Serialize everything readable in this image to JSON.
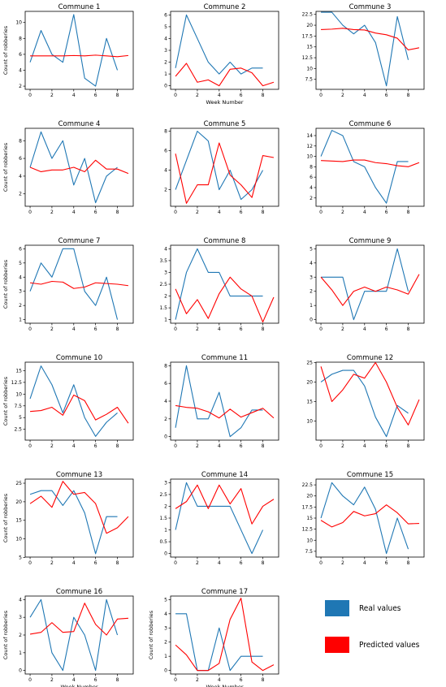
{
  "chart_data": [
    {
      "type": "line",
      "title": "Commune 1",
      "xlabel": "",
      "ylabel": "Count of robberies",
      "ylim": [
        1.6,
        11.4
      ],
      "yticks": [
        2,
        4,
        6,
        8,
        10
      ],
      "xticks": [
        0,
        2,
        4,
        6,
        8
      ],
      "series": [
        {
          "values": [
            5,
            9,
            6,
            5,
            11,
            3,
            2,
            8,
            4
          ]
        },
        {
          "values": [
            5.8,
            5.8,
            5.8,
            5.8,
            5.85,
            5.8,
            5.9,
            5.8,
            5.7,
            5.85
          ]
        }
      ]
    },
    {
      "type": "line",
      "title": "Commune 2",
      "xlabel": "Week Number",
      "ylabel": "",
      "ylim": [
        -0.3,
        6.3
      ],
      "yticks": [
        0,
        1,
        2,
        3,
        4,
        5,
        6
      ],
      "xticks": [
        0,
        2,
        4,
        6,
        8
      ],
      "series": [
        {
          "values": [
            1.5,
            6,
            4,
            2,
            1,
            2,
            1,
            1.5,
            1.5
          ]
        },
        {
          "values": [
            0.8,
            1.9,
            0.3,
            0.5,
            0,
            1.4,
            1.5,
            1.1,
            0,
            0.3
          ]
        }
      ]
    },
    {
      "type": "line",
      "title": "Commune 3",
      "xlabel": "",
      "ylabel": "",
      "ylim": [
        5.2,
        23.2
      ],
      "yticks": [
        7.5,
        10.0,
        12.5,
        15.0,
        17.5,
        20.0,
        22.5
      ],
      "xticks": [
        0,
        2,
        4,
        6,
        8
      ],
      "series": [
        {
          "values": [
            23,
            23,
            20,
            18,
            20,
            16,
            6,
            22,
            12
          ]
        },
        {
          "values": [
            19,
            19.1,
            19.3,
            19,
            18.9,
            18.2,
            17.8,
            17,
            14.3,
            14.8
          ]
        }
      ]
    },
    {
      "type": "line",
      "title": "Commune 4",
      "xlabel": "",
      "ylabel": "Count of robberies",
      "ylim": [
        0.6,
        9.4
      ],
      "yticks": [
        2,
        4,
        6,
        8
      ],
      "xticks": [
        0,
        2,
        4,
        6,
        8
      ],
      "series": [
        {
          "values": [
            5,
            9,
            6,
            8,
            3,
            6,
            1,
            4,
            5
          ]
        },
        {
          "values": [
            5,
            4.5,
            4.7,
            4.7,
            5,
            4.5,
            5.8,
            4.8,
            4.8,
            4.3
          ]
        }
      ]
    },
    {
      "type": "line",
      "title": "Commune 5",
      "xlabel": "",
      "ylabel": "",
      "ylim": [
        0.3,
        8.3
      ],
      "yticks": [
        2,
        4,
        6,
        8
      ],
      "xticks": [
        0,
        2,
        4,
        6,
        8
      ],
      "series": [
        {
          "values": [
            2,
            5,
            8,
            7,
            2,
            4,
            1,
            2,
            4
          ]
        },
        {
          "values": [
            5.7,
            0.6,
            2.5,
            2.5,
            6.8,
            3.5,
            2.5,
            1.2,
            5.5,
            5.3
          ]
        }
      ]
    },
    {
      "type": "line",
      "title": "Commune 6",
      "xlabel": "",
      "ylabel": "",
      "ylim": [
        0.4,
        15.4
      ],
      "yticks": [
        2,
        4,
        6,
        8,
        10,
        12,
        14
      ],
      "xticks": [
        0,
        2,
        4,
        6,
        8
      ],
      "series": [
        {
          "values": [
            10,
            15,
            14,
            9,
            8,
            4,
            1,
            9,
            9
          ]
        },
        {
          "values": [
            9.2,
            9.1,
            9,
            9.3,
            9.3,
            8.8,
            8.6,
            8.2,
            8,
            8.8
          ]
        }
      ]
    },
    {
      "type": "line",
      "title": "Commune 7",
      "xlabel": "",
      "ylabel": "Count of robberies",
      "ylim": [
        0.75,
        6.25
      ],
      "yticks": [
        1,
        2,
        3,
        4,
        5,
        6
      ],
      "xticks": [
        0,
        2,
        4,
        6,
        8
      ],
      "series": [
        {
          "values": [
            3,
            5,
            4,
            6,
            6,
            3,
            2,
            4,
            1
          ]
        },
        {
          "values": [
            3.6,
            3.5,
            3.7,
            3.65,
            3.2,
            3.3,
            3.6,
            3.55,
            3.5,
            3.4
          ]
        }
      ]
    },
    {
      "type": "line",
      "title": "Commune 8",
      "xlabel": "",
      "ylabel": "",
      "ylim": [
        0.85,
        4.15
      ],
      "yticks": [
        1.0,
        1.5,
        2.0,
        2.5,
        3.0,
        3.5,
        4.0
      ],
      "xticks": [
        0,
        2,
        4,
        6,
        8
      ],
      "series": [
        {
          "values": [
            1,
            3,
            4,
            3,
            3,
            2,
            2,
            2,
            2
          ]
        },
        {
          "values": [
            2.3,
            1.25,
            1.85,
            1.05,
            2.1,
            2.8,
            2.3,
            2,
            0.9,
            1.95
          ]
        }
      ]
    },
    {
      "type": "line",
      "title": "Commune 9",
      "xlabel": "",
      "ylabel": "",
      "ylim": [
        -0.25,
        5.25
      ],
      "yticks": [
        0,
        1,
        2,
        3,
        4,
        5
      ],
      "xticks": [
        0,
        2,
        4,
        6,
        8
      ],
      "series": [
        {
          "values": [
            3,
            3,
            3,
            0,
            2,
            2,
            2,
            5,
            2
          ]
        },
        {
          "values": [
            3,
            2.1,
            1,
            2,
            2.3,
            2,
            2.3,
            2.1,
            1.8,
            3.2
          ]
        }
      ]
    },
    {
      "type": "line",
      "title": "Commune 10",
      "xlabel": "",
      "ylabel": "Count of robberies",
      "ylim": [
        0.2,
        16.8
      ],
      "yticks": [
        2.5,
        5.0,
        7.5,
        10.0,
        12.5,
        15.0
      ],
      "xticks": [
        0,
        2,
        4,
        6,
        8
      ],
      "series": [
        {
          "values": [
            9,
            16,
            12,
            6,
            12,
            5,
            1,
            4,
            6
          ]
        },
        {
          "values": [
            6.3,
            6.5,
            7.2,
            5.5,
            9.8,
            8.6,
            4.5,
            5.7,
            7.2,
            3.8
          ]
        }
      ]
    },
    {
      "type": "line",
      "title": "Commune 11",
      "xlabel": "",
      "ylabel": "",
      "ylim": [
        -0.4,
        8.4
      ],
      "yticks": [
        0,
        2,
        4,
        6,
        8
      ],
      "xticks": [
        0,
        2,
        4,
        6,
        8
      ],
      "series": [
        {
          "values": [
            1,
            8,
            2,
            2,
            5,
            0,
            1,
            3,
            3
          ]
        },
        {
          "values": [
            3.5,
            3.3,
            3.2,
            2.8,
            2.1,
            3.1,
            2.2,
            2.7,
            3.2,
            2.1
          ]
        }
      ]
    },
    {
      "type": "line",
      "title": "Commune 12",
      "xlabel": "",
      "ylabel": "",
      "ylim": [
        5.1,
        25.1
      ],
      "yticks": [
        10,
        15,
        20,
        25
      ],
      "xticks": [
        0,
        2,
        4,
        6,
        8
      ],
      "series": [
        {
          "values": [
            20,
            22,
            23,
            23,
            19,
            11,
            6,
            14,
            12
          ]
        },
        {
          "values": [
            24,
            15,
            18,
            22,
            21,
            25,
            20,
            13.5,
            9,
            15.5
          ]
        }
      ]
    },
    {
      "type": "line",
      "title": "Commune 13",
      "xlabel": "",
      "ylabel": "Count of robberies",
      "ylim": [
        5.1,
        26.1
      ],
      "yticks": [
        5,
        10,
        15,
        20,
        25
      ],
      "xticks": [
        0,
        2,
        4,
        6,
        8
      ],
      "series": [
        {
          "values": [
            22,
            23,
            23,
            19,
            23,
            17,
            6,
            16,
            16
          ]
        },
        {
          "values": [
            19.5,
            21.5,
            18.5,
            25.5,
            22,
            22.5,
            19.5,
            11.5,
            13,
            16
          ]
        }
      ]
    },
    {
      "type": "line",
      "title": "Commune 14",
      "xlabel": "",
      "ylabel": "",
      "ylim": [
        -0.15,
        3.15
      ],
      "yticks": [
        0.0,
        0.5,
        1.0,
        1.5,
        2.0,
        2.5,
        3.0
      ],
      "xticks": [
        0,
        2,
        4,
        6,
        8
      ],
      "series": [
        {
          "values": [
            1,
            3,
            2,
            2,
            2,
            2,
            1,
            0,
            1
          ]
        },
        {
          "values": [
            1.9,
            2.2,
            2.9,
            1.9,
            2.9,
            2.1,
            2.75,
            1.25,
            2,
            2.3
          ]
        }
      ]
    },
    {
      "type": "line",
      "title": "Commune 15",
      "xlabel": "",
      "ylabel": "",
      "ylim": [
        6.2,
        23.8
      ],
      "yticks": [
        7.5,
        10.0,
        12.5,
        15.0,
        17.5,
        20.0,
        22.5
      ],
      "xticks": [
        0,
        2,
        4,
        6,
        8
      ],
      "series": [
        {
          "values": [
            15,
            23,
            20,
            18,
            22,
            17,
            7,
            15,
            8
          ]
        },
        {
          "values": [
            14.5,
            13,
            14,
            16.5,
            15.5,
            16,
            18,
            16.2,
            13.7,
            13.8
          ]
        }
      ]
    },
    {
      "type": "line",
      "title": "Commune 16",
      "xlabel": "Week Number",
      "ylabel": "Count of robberies",
      "ylim": [
        -0.2,
        4.2
      ],
      "yticks": [
        0,
        1,
        2,
        3,
        4
      ],
      "xticks": [
        0,
        2,
        4,
        6,
        8
      ],
      "series": [
        {
          "values": [
            3,
            4,
            1,
            0,
            3,
            2,
            0,
            4,
            2
          ]
        },
        {
          "values": [
            2.05,
            2.15,
            2.7,
            2.15,
            2.2,
            3.8,
            2.6,
            2,
            2.9,
            2.95
          ]
        }
      ]
    },
    {
      "type": "line",
      "title": "Commune 17",
      "xlabel": "Week Number",
      "ylabel": "Count of robberies",
      "ylim": [
        -0.25,
        5.25
      ],
      "yticks": [
        0,
        1,
        2,
        3,
        4,
        5
      ],
      "xticks": [
        0,
        2,
        4,
        6,
        8
      ],
      "series": [
        {
          "values": [
            4,
            4,
            0,
            0,
            3,
            0,
            1,
            1,
            1
          ]
        },
        {
          "values": [
            1.8,
            1.1,
            0,
            0,
            0.5,
            3.6,
            5.1,
            0.6,
            0,
            0.4
          ]
        }
      ]
    }
  ],
  "legend": {
    "items": [
      {
        "label": "Real values",
        "color": "#1f77b4"
      },
      {
        "label": "Predicted values",
        "color": "#ff0000"
      }
    ]
  },
  "colors": {
    "real": "#1f77b4",
    "predicted": "#ff0000"
  }
}
